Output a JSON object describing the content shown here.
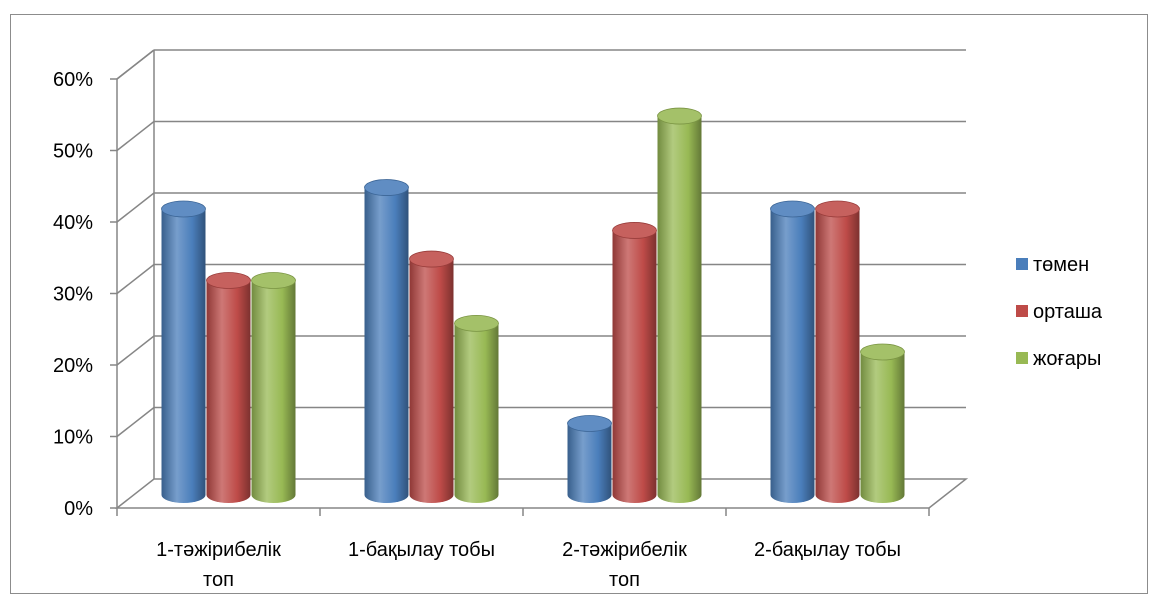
{
  "chart_data": {
    "type": "bar",
    "title": "",
    "xlabel": "",
    "ylabel": "",
    "ylim": [
      0,
      60
    ],
    "y_tick_labels": [
      "0%",
      "10%",
      "20%",
      "30%",
      "40%",
      "50%",
      "60%"
    ],
    "y_unit": "%",
    "grid": true,
    "legend_position": "right",
    "three_d": true,
    "categories": [
      [
        "1-тәжірибелік",
        "топ"
      ],
      [
        "1-бақылау тобы"
      ],
      [
        "2-тәжірибелік",
        "топ"
      ],
      [
        "2-бақылау тобы"
      ]
    ],
    "series": [
      {
        "name": "төмен",
        "color": "#4a7ebb",
        "values": [
          40,
          43,
          10,
          40
        ]
      },
      {
        "name": "орташа",
        "color": "#be4b48",
        "values": [
          30,
          33,
          37,
          40
        ]
      },
      {
        "name": "жоғары",
        "color": "#98b954",
        "values": [
          30,
          24,
          53,
          20
        ]
      }
    ]
  }
}
